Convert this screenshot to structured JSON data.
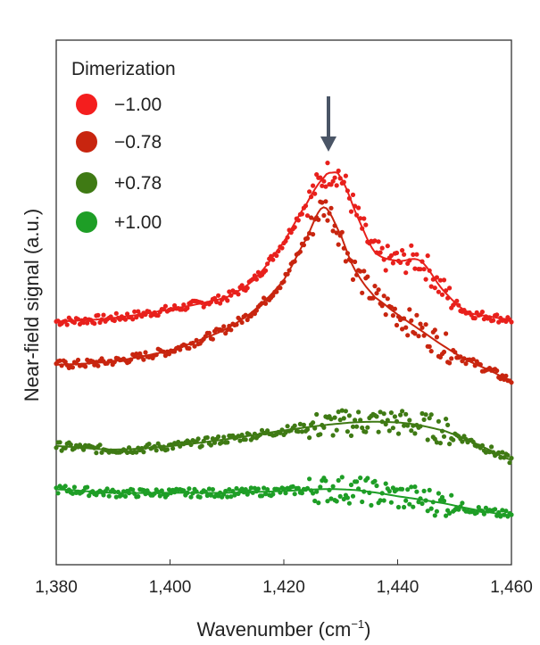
{
  "chart_data": {
    "type": "scatter",
    "title": "",
    "xlabel": "Wavenumber (cm",
    "xlabel_sup": "−1",
    "xlabel_close": ")",
    "ylabel": "Near-field signal (a.u.)",
    "xlim": [
      1380,
      1460
    ],
    "x_ticks": [
      1380,
      1400,
      1420,
      1440,
      1460
    ],
    "x_tick_labels": [
      "1,380",
      "1,400",
      "1,420",
      "1,440",
      "1,460"
    ],
    "y_ticks_shown": false,
    "grid": false,
    "legend": {
      "title": "Dimerization",
      "placement": "top-left",
      "entries": [
        "−1.00",
        "−0.78",
        "+0.78",
        "+1.00"
      ]
    },
    "annotation": {
      "type": "arrow",
      "x": 1428,
      "direction": "down"
    },
    "series": [
      {
        "name": "−1.00",
        "color": "#e8201c",
        "fit_x": [
          1380,
          1390,
          1400,
          1410,
          1415,
          1420,
          1424,
          1427,
          1428.5,
          1430,
          1433,
          1436,
          1440,
          1444,
          1448,
          1452,
          1456,
          1460
        ],
        "fit_y": [
          0.72,
          0.74,
          0.79,
          0.86,
          0.97,
          1.18,
          1.4,
          1.55,
          1.58,
          1.55,
          1.32,
          1.12,
          1.07,
          1.07,
          0.9,
          0.78,
          0.75,
          0.73
        ]
      },
      {
        "name": "−0.78",
        "color": "#c8250f",
        "fit_x": [
          1380,
          1390,
          1400,
          1405,
          1410,
          1415,
          1420,
          1424,
          1427,
          1430,
          1432,
          1434,
          1436,
          1440,
          1444,
          1448,
          1452,
          1456,
          1460
        ],
        "fit_y": [
          0.47,
          0.49,
          0.55,
          0.61,
          0.68,
          0.79,
          0.96,
          1.2,
          1.38,
          1.22,
          1.05,
          0.94,
          0.86,
          0.76,
          0.67,
          0.58,
          0.5,
          0.44,
          0.38
        ]
      },
      {
        "name": "+0.78",
        "color": "#3f7a14",
        "fit_x": [
          1380,
          1390,
          1400,
          1410,
          1420,
          1430,
          1436,
          1442,
          1448,
          1452,
          1456,
          1460
        ],
        "fit_y": [
          0.0,
          -0.02,
          0.0,
          0.04,
          0.09,
          0.13,
          0.14,
          0.13,
          0.09,
          0.04,
          -0.02,
          -0.08
        ]
      },
      {
        "name": "+1.00",
        "color": "#1e9e26",
        "fit_x": [
          1380,
          1390,
          1400,
          1410,
          1420,
          1426,
          1430,
          1434,
          1440,
          1448,
          1454,
          1460
        ],
        "fit_y": [
          -0.25,
          -0.27,
          -0.27,
          -0.27,
          -0.26,
          -0.25,
          -0.25,
          -0.26,
          -0.29,
          -0.33,
          -0.37,
          -0.4
        ]
      }
    ]
  }
}
